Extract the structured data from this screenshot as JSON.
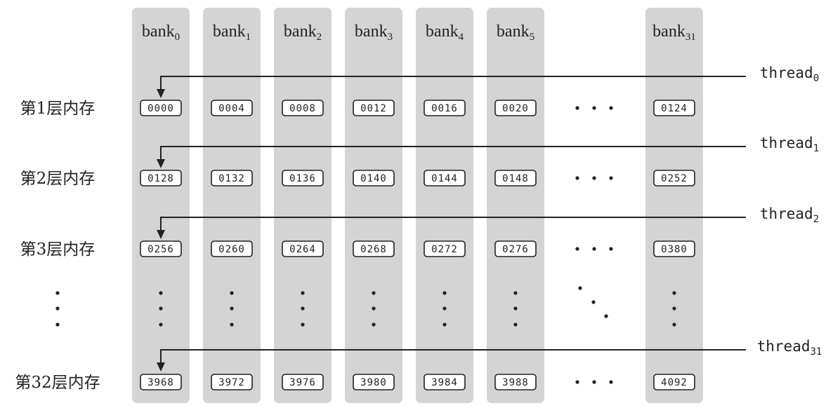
{
  "banks": [
    {
      "base": "bank",
      "sub": "0"
    },
    {
      "base": "bank",
      "sub": "1"
    },
    {
      "base": "bank",
      "sub": "2"
    },
    {
      "base": "bank",
      "sub": "3"
    },
    {
      "base": "bank",
      "sub": "4"
    },
    {
      "base": "bank",
      "sub": "5"
    },
    {
      "base": "bank",
      "sub": "31"
    }
  ],
  "rows": [
    {
      "label": "第1层内存",
      "thread": {
        "base": "thread",
        "sub": "0"
      },
      "cells": [
        "0000",
        "0004",
        "0008",
        "0012",
        "0016",
        "0020",
        "0124"
      ]
    },
    {
      "label": "第2层内存",
      "thread": {
        "base": "thread",
        "sub": "1"
      },
      "cells": [
        "0128",
        "0132",
        "0136",
        "0140",
        "0144",
        "0148",
        "0252"
      ]
    },
    {
      "label": "第3层内存",
      "thread": {
        "base": "thread",
        "sub": "2"
      },
      "cells": [
        "0256",
        "0260",
        "0264",
        "0268",
        "0272",
        "0276",
        "0380"
      ]
    },
    {
      "label": "第32层内存",
      "thread": {
        "base": "thread",
        "sub": "31"
      },
      "cells": [
        "3968",
        "3972",
        "3976",
        "3980",
        "3984",
        "3988",
        "4092"
      ]
    }
  ],
  "colors": {
    "bank_column": "#d4d4d4",
    "ink": "#222222"
  }
}
